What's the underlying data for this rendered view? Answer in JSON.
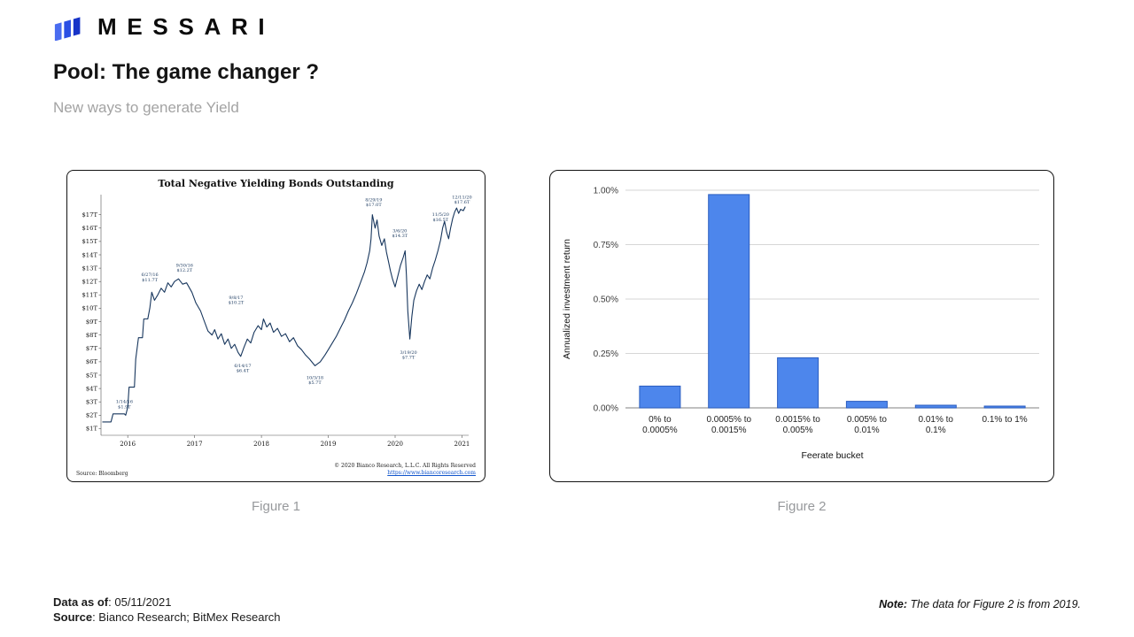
{
  "brand": {
    "wordmark": "MESSARI"
  },
  "header": {
    "title": "Pool: The game changer ?",
    "subtitle": "New ways to generate Yield"
  },
  "chart_data": [
    {
      "type": "line",
      "title": "Total Negative Yielding Bonds Outstanding",
      "units": "USD trillions",
      "xlim": [
        2015.6,
        2021.1
      ],
      "ylim": [
        0.5,
        18.5
      ],
      "x_ticks": [
        2016,
        2017,
        2018,
        2019,
        2020,
        2021
      ],
      "y_ticks": [
        {
          "v": 17,
          "label": "$17T"
        },
        {
          "v": 16,
          "label": "$16T"
        },
        {
          "v": 15,
          "label": "$15T"
        },
        {
          "v": 14,
          "label": "$14T"
        },
        {
          "v": 13,
          "label": "$13T"
        },
        {
          "v": 12,
          "label": "$12T"
        },
        {
          "v": 11,
          "label": "$11T"
        },
        {
          "v": 10,
          "label": "$10T"
        },
        {
          "v": 9,
          "label": "$9T"
        },
        {
          "v": 8,
          "label": "$8T"
        },
        {
          "v": 7,
          "label": "$7T"
        },
        {
          "v": 6,
          "label": "$6T"
        },
        {
          "v": 5,
          "label": "$5T"
        },
        {
          "v": 4,
          "label": "$4T"
        },
        {
          "v": 3,
          "label": "$3T"
        },
        {
          "v": 2,
          "label": "$2T"
        },
        {
          "v": 1,
          "label": "$1T"
        }
      ],
      "line_color": "#17365d",
      "grid": false,
      "legend": "none",
      "points": [
        [
          2015.62,
          1.5
        ],
        [
          2015.75,
          1.5
        ],
        [
          2015.78,
          2.1
        ],
        [
          2015.95,
          2.1
        ],
        [
          2015.97,
          2.0
        ],
        [
          2016.0,
          2.6
        ],
        [
          2016.02,
          4.1
        ],
        [
          2016.1,
          4.1
        ],
        [
          2016.12,
          6.2
        ],
        [
          2016.16,
          7.8
        ],
        [
          2016.22,
          7.8
        ],
        [
          2016.24,
          9.2
        ],
        [
          2016.3,
          9.2
        ],
        [
          2016.33,
          10.0
        ],
        [
          2016.36,
          11.2
        ],
        [
          2016.4,
          10.6
        ],
        [
          2016.45,
          11.0
        ],
        [
          2016.5,
          11.5
        ],
        [
          2016.55,
          11.2
        ],
        [
          2016.6,
          11.9
        ],
        [
          2016.65,
          11.6
        ],
        [
          2016.7,
          12.0
        ],
        [
          2016.76,
          12.2
        ],
        [
          2016.82,
          11.8
        ],
        [
          2016.88,
          11.9
        ],
        [
          2016.96,
          11.2
        ],
        [
          2017.02,
          10.4
        ],
        [
          2017.09,
          9.8
        ],
        [
          2017.14,
          9.1
        ],
        [
          2017.2,
          8.3
        ],
        [
          2017.26,
          8.0
        ],
        [
          2017.3,
          8.4
        ],
        [
          2017.35,
          7.7
        ],
        [
          2017.4,
          8.1
        ],
        [
          2017.45,
          7.3
        ],
        [
          2017.5,
          7.7
        ],
        [
          2017.55,
          7.0
        ],
        [
          2017.6,
          7.3
        ],
        [
          2017.65,
          6.7
        ],
        [
          2017.69,
          6.4
        ],
        [
          2017.74,
          7.1
        ],
        [
          2017.79,
          7.7
        ],
        [
          2017.84,
          7.4
        ],
        [
          2017.89,
          8.2
        ],
        [
          2017.95,
          8.7
        ],
        [
          2018.0,
          8.4
        ],
        [
          2018.03,
          9.2
        ],
        [
          2018.08,
          8.6
        ],
        [
          2018.13,
          8.9
        ],
        [
          2018.18,
          8.2
        ],
        [
          2018.24,
          8.5
        ],
        [
          2018.3,
          7.9
        ],
        [
          2018.36,
          8.1
        ],
        [
          2018.42,
          7.5
        ],
        [
          2018.48,
          7.8
        ],
        [
          2018.54,
          7.2
        ],
        [
          2018.6,
          6.9
        ],
        [
          2018.66,
          6.5
        ],
        [
          2018.72,
          6.2
        ],
        [
          2018.8,
          5.7
        ],
        [
          2018.88,
          6.0
        ],
        [
          2018.95,
          6.5
        ],
        [
          2019.0,
          6.9
        ],
        [
          2019.06,
          7.4
        ],
        [
          2019.12,
          7.9
        ],
        [
          2019.18,
          8.5
        ],
        [
          2019.24,
          9.1
        ],
        [
          2019.3,
          9.8
        ],
        [
          2019.36,
          10.4
        ],
        [
          2019.42,
          11.1
        ],
        [
          2019.48,
          11.9
        ],
        [
          2019.54,
          12.7
        ],
        [
          2019.58,
          13.4
        ],
        [
          2019.62,
          14.3
        ],
        [
          2019.64,
          15.2
        ],
        [
          2019.66,
          17.0
        ],
        [
          2019.7,
          16.0
        ],
        [
          2019.73,
          16.6
        ],
        [
          2019.76,
          15.4
        ],
        [
          2019.8,
          14.7
        ],
        [
          2019.84,
          15.2
        ],
        [
          2019.87,
          14.2
        ],
        [
          2019.9,
          13.5
        ],
        [
          2019.93,
          12.8
        ],
        [
          2019.96,
          12.2
        ],
        [
          2020.0,
          11.6
        ],
        [
          2020.04,
          12.4
        ],
        [
          2020.08,
          13.2
        ],
        [
          2020.12,
          13.8
        ],
        [
          2020.15,
          14.3
        ],
        [
          2020.17,
          12.4
        ],
        [
          2020.19,
          9.8
        ],
        [
          2020.22,
          7.7
        ],
        [
          2020.25,
          9.4
        ],
        [
          2020.28,
          10.6
        ],
        [
          2020.32,
          11.3
        ],
        [
          2020.36,
          11.8
        ],
        [
          2020.4,
          11.4
        ],
        [
          2020.44,
          12.0
        ],
        [
          2020.48,
          12.5
        ],
        [
          2020.52,
          12.2
        ],
        [
          2020.56,
          13.0
        ],
        [
          2020.6,
          13.6
        ],
        [
          2020.64,
          14.3
        ],
        [
          2020.68,
          15.1
        ],
        [
          2020.71,
          16.0
        ],
        [
          2020.74,
          16.5
        ],
        [
          2020.77,
          15.7
        ],
        [
          2020.8,
          15.2
        ],
        [
          2020.83,
          16.0
        ],
        [
          2020.86,
          16.7
        ],
        [
          2020.89,
          17.2
        ],
        [
          2020.92,
          17.5
        ],
        [
          2020.95,
          17.1
        ],
        [
          2020.98,
          17.4
        ],
        [
          2021.02,
          17.3
        ],
        [
          2021.05,
          17.6
        ]
      ],
      "annotations": [
        {
          "ax": 2015.95,
          "ay": 2.9,
          "lines": [
            "1/14/16",
            "$1.9T"
          ]
        },
        {
          "ax": 2016.33,
          "ay": 12.4,
          "lines": [
            "6/27/16",
            "$11.7T"
          ]
        },
        {
          "ax": 2016.85,
          "ay": 13.1,
          "lines": [
            "9/30/16",
            "$12.2T"
          ]
        },
        {
          "ax": 2017.62,
          "ay": 10.7,
          "lines": [
            "9/8/17",
            "$10.2T"
          ]
        },
        {
          "ax": 2017.72,
          "ay": 5.6,
          "lines": [
            "6/14/17",
            "$6.4T"
          ]
        },
        {
          "ax": 2018.8,
          "ay": 4.7,
          "lines": [
            "10/3/18",
            "$5.7T"
          ]
        },
        {
          "ax": 2019.68,
          "ay": 18.0,
          "lines": [
            "8/29/19",
            "$17.0T"
          ]
        },
        {
          "ax": 2020.07,
          "ay": 15.7,
          "lines": [
            "3/6/20",
            "$14.3T"
          ]
        },
        {
          "ax": 2020.2,
          "ay": 6.6,
          "lines": [
            "3/19/20",
            "$7.7T"
          ]
        },
        {
          "ax": 2020.68,
          "ay": 16.9,
          "lines": [
            "11/5/20",
            "$16.5T"
          ]
        },
        {
          "ax": 2021.0,
          "ay": 18.2,
          "lines": [
            "12/11/20",
            "$17.6T"
          ]
        }
      ]
    },
    {
      "type": "bar",
      "title": "",
      "xlabel": "Feerate bucket",
      "ylabel": "Annualized investment return",
      "categories": [
        "0% to 0.0005%",
        "0.0005% to 0.0015%",
        "0.0015% to 0.005%",
        "0.005% to 0.01%",
        "0.01% to 0.1%",
        "0.1% to 1%"
      ],
      "values": [
        0.1,
        0.98,
        0.23,
        0.03,
        0.012,
        0.008
      ],
      "y_ticks": [
        {
          "v": 0,
          "label": "0.00%"
        },
        {
          "v": 0.25,
          "label": "0.25%"
        },
        {
          "v": 0.5,
          "label": "0.50%"
        },
        {
          "v": 0.75,
          "label": "0.75%"
        },
        {
          "v": 1.0,
          "label": "1.00%"
        }
      ],
      "ylim": [
        0,
        1.05
      ],
      "grid": true,
      "legend": "none",
      "bar_fill": "#4d86ec",
      "bar_stroke": "#2b5dc0"
    }
  ],
  "figure1": {
    "caption": "Figure 1",
    "source_note": "Source: Bloomberg",
    "copyright_line": "© 2020 Bianco Research, L.L.C. All Rights Reserved",
    "copyright_url": "https://www.biancoresearch.com"
  },
  "figure2": {
    "caption": "Figure 2"
  },
  "footer": {
    "data_as_of_label": "Data as of",
    "data_as_of_value": ": 05/11/2021",
    "source_label": "Source",
    "source_value": ": Bianco Research; BitMex Research",
    "note_label": "Note:",
    "note_text": " The data for Figure 2 is from 2019."
  }
}
